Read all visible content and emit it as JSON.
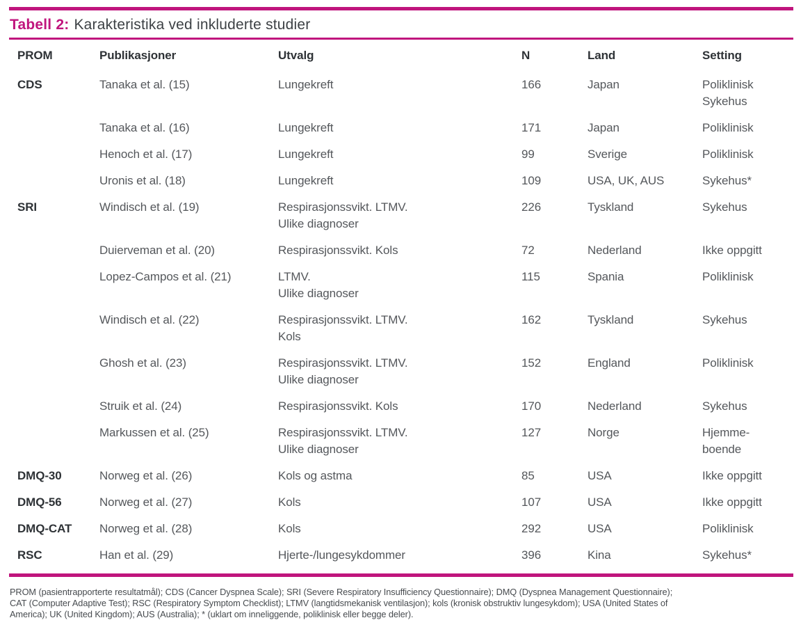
{
  "title": {
    "prefix": "Tabell 2:",
    "text": "Karakteristika ved inkluderte studier"
  },
  "colors": {
    "accent": "#c0157d",
    "heading_text": "#2e3236",
    "body_text": "#54575b"
  },
  "table": {
    "headers": {
      "prom": "PROM",
      "pub": "Publikasjoner",
      "utvalg": "Utvalg",
      "n": "N",
      "land": "Land",
      "setting": "Setting"
    },
    "rows": [
      {
        "prom": "CDS",
        "pub": "Tanaka et al. (15)",
        "utvalg": [
          "Lungekreft"
        ],
        "n": "166",
        "land": "Japan",
        "setting": [
          "Poliklinisk",
          "Sykehus"
        ]
      },
      {
        "prom": "",
        "pub": "Tanaka et al. (16)",
        "utvalg": [
          "Lungekreft"
        ],
        "n": "171",
        "land": "Japan",
        "setting": [
          "Poliklinisk"
        ]
      },
      {
        "prom": "",
        "pub": "Henoch et al. (17)",
        "utvalg": [
          "Lungekreft"
        ],
        "n": "99",
        "land": "Sverige",
        "setting": [
          "Poliklinisk"
        ]
      },
      {
        "prom": "",
        "pub": "Uronis et al. (18)",
        "utvalg": [
          "Lungekreft"
        ],
        "n": "109",
        "land": "USA, UK, AUS",
        "setting": [
          "Sykehus*"
        ]
      },
      {
        "prom": "SRI",
        "pub": "Windisch et al. (19)",
        "utvalg": [
          "Respirasjonssvikt. LTMV.",
          "Ulike diagnoser"
        ],
        "n": "226",
        "land": "Tyskland",
        "setting": [
          "Sykehus"
        ]
      },
      {
        "prom": "",
        "pub": "Duierveman et al. (20)",
        "utvalg": [
          "Respirasjonssvikt. Kols"
        ],
        "n": "72",
        "land": "Nederland",
        "setting": [
          "Ikke oppgitt"
        ]
      },
      {
        "prom": "",
        "pub": "Lopez-Campos et al. (21)",
        "utvalg": [
          "LTMV.",
          "Ulike diagnoser"
        ],
        "n": "115",
        "land": "Spania",
        "setting": [
          "Poliklinisk"
        ]
      },
      {
        "prom": "",
        "pub": "Windisch et al. (22)",
        "utvalg": [
          "Respirasjonssvikt. LTMV.",
          "Kols"
        ],
        "n": "162",
        "land": "Tyskland",
        "setting": [
          "Sykehus"
        ]
      },
      {
        "prom": "",
        "pub": "Ghosh et al. (23)",
        "utvalg": [
          "Respirasjonssvikt. LTMV.",
          "Ulike diagnoser"
        ],
        "n": "152",
        "land": "England",
        "setting": [
          "Poliklinisk"
        ]
      },
      {
        "prom": "",
        "pub": "Struik et al. (24)",
        "utvalg": [
          "Respirasjonssvikt. Kols"
        ],
        "n": "170",
        "land": "Nederland",
        "setting": [
          "Sykehus"
        ]
      },
      {
        "prom": "",
        "pub": "Markussen et al. (25)",
        "utvalg": [
          "Respirasjonssvikt. LTMV.",
          "Ulike diagnoser"
        ],
        "n": "127",
        "land": "Norge",
        "setting": [
          "Hjemme-",
          "boende"
        ]
      },
      {
        "prom": "DMQ-30",
        "pub": "Norweg et al. (26)",
        "utvalg": [
          "Kols og astma"
        ],
        "n": "85",
        "land": "USA",
        "setting": [
          "Ikke oppgitt"
        ]
      },
      {
        "prom": "DMQ-56",
        "pub": "Norweg et al. (27)",
        "utvalg": [
          "Kols"
        ],
        "n": "107",
        "land": "USA",
        "setting": [
          "Ikke oppgitt"
        ]
      },
      {
        "prom": "DMQ-CAT",
        "pub": "Norweg et al. (28)",
        "utvalg": [
          "Kols"
        ],
        "n": "292",
        "land": "USA",
        "setting": [
          "Poliklinisk"
        ]
      },
      {
        "prom": "RSC",
        "pub": "Han et al. (29)",
        "utvalg": [
          "Hjerte-/lungesykdommer"
        ],
        "n": "396",
        "land": "Kina",
        "setting": [
          "Sykehus*"
        ]
      }
    ]
  },
  "footnote_lines": [
    "PROM (pasientrapporterte resultatmål); CDS (Cancer Dyspnea Scale); SRI (Severe Respiratory Insufficiency Questionnaire); DMQ (Dyspnea Management Questionnaire);",
    "CAT (Computer Adaptive Test); RSC (Respiratory Symptom Checklist); LTMV (langtidsmekanisk ventilasjon); kols (kronisk obstruktiv lungesykdom); USA (United States of",
    "America); UK (United Kingdom); AUS (Australia); * (uklart om inneliggende, poliklinisk eller begge deler)."
  ]
}
